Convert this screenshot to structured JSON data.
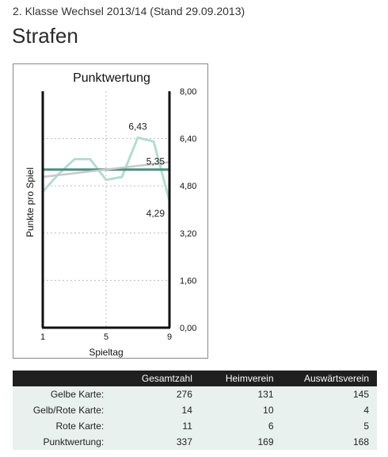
{
  "header": {
    "subtitle": "2. Klasse Wechsel 2013/14 (Stand 29.09.2013)",
    "title": "Strafen"
  },
  "chart_data": {
    "type": "line",
    "title": "Punktwertung",
    "xlabel": "Spieltag",
    "ylabel": "Punkte pro Spiel",
    "x_ticks": [
      "1",
      "5",
      "9"
    ],
    "y_ticks": [
      "8,00",
      "6,40",
      "4,80",
      "3,20",
      "1,60",
      "0,00"
    ],
    "xlim": [
      1,
      9
    ],
    "ylim": [
      0,
      8
    ],
    "y_axis_position": "right",
    "grid": true,
    "series": [
      {
        "x": [
          1,
          2,
          3,
          4,
          5,
          6,
          7,
          8,
          9
        ],
        "values": [
          4.6,
          5.2,
          5.7,
          5.7,
          5.0,
          5.1,
          6.43,
          6.3,
          4.29
        ],
        "color": "#b4dcd2"
      },
      {
        "x": [
          1,
          9
        ],
        "values": [
          5.35,
          5.35
        ],
        "color": "#4a9080"
      },
      {
        "x": [
          1,
          9
        ],
        "values": [
          5.1,
          5.6
        ],
        "color": "#c8c8c8"
      }
    ],
    "data_labels": [
      {
        "x": 7,
        "y": 6.43,
        "text": "6,43"
      },
      {
        "x": 9,
        "y": 5.35,
        "text": "5,35"
      },
      {
        "x": 9,
        "y": 4.29,
        "text": "4,29"
      }
    ]
  },
  "table": {
    "headers": [
      "",
      "Gesamtzahl",
      "Heimverein",
      "Auswärtsverein"
    ],
    "rows": [
      [
        "Gelbe Karte:",
        "276",
        "131",
        "145"
      ],
      [
        "Gelb/Rote Karte:",
        "14",
        "10",
        "4"
      ],
      [
        "Rote Karte:",
        "11",
        "6",
        "5"
      ],
      [
        "Punktwertung:",
        "337",
        "169",
        "168"
      ]
    ]
  }
}
